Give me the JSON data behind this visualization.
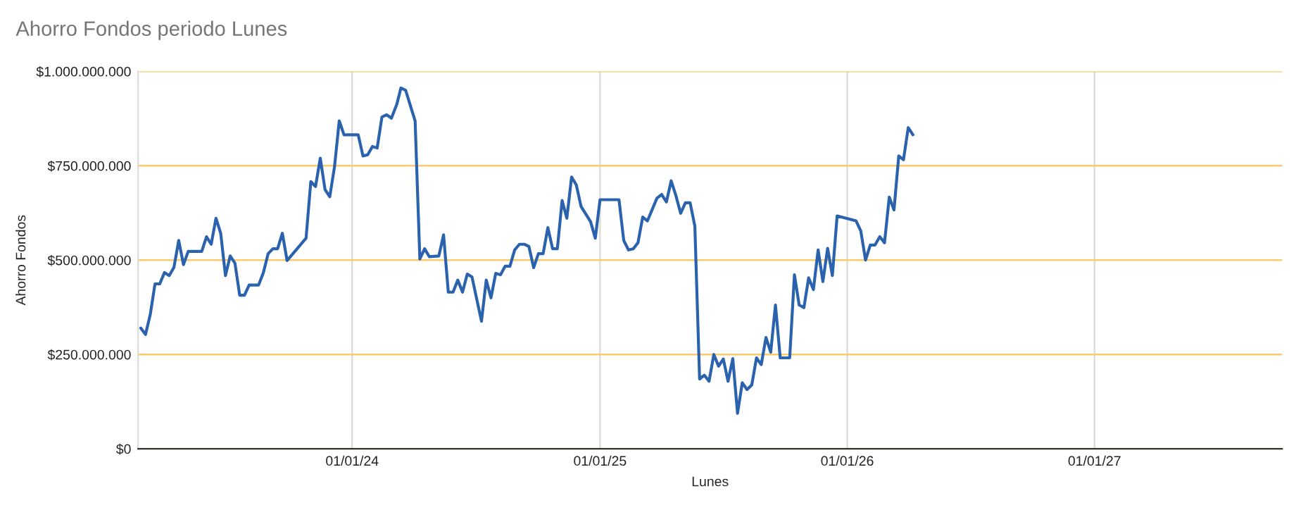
{
  "chart_data": {
    "type": "line",
    "title": "Ahorro Fondos periodo Lunes",
    "xlabel": "Lunes",
    "ylabel": "Ahorro Fondos",
    "x": [
      "2023-02-23",
      "2023-03-02",
      "2023-03-09",
      "2023-03-16",
      "2023-03-23",
      "2023-03-30",
      "2023-04-06",
      "2023-04-13",
      "2023-04-20",
      "2023-04-27",
      "2023-05-04",
      "2023-05-24",
      "2023-05-31",
      "2023-06-07",
      "2023-06-14",
      "2023-06-21",
      "2023-06-28",
      "2023-07-05",
      "2023-07-12",
      "2023-07-19",
      "2023-07-26",
      "2023-08-02",
      "2023-08-16",
      "2023-08-23",
      "2023-08-30",
      "2023-09-06",
      "2023-09-13",
      "2023-09-20",
      "2023-09-27",
      "2023-10-25",
      "2023-11-01",
      "2023-11-08",
      "2023-11-15",
      "2023-11-22",
      "2023-11-29",
      "2023-12-06",
      "2023-12-13",
      "2023-12-20",
      "2024-01-10",
      "2024-01-17",
      "2024-01-24",
      "2024-01-31",
      "2024-02-07",
      "2024-02-14",
      "2024-02-21",
      "2024-02-28",
      "2024-03-07",
      "2024-03-13",
      "2024-03-20",
      "2024-04-03",
      "2024-04-10",
      "2024-04-17",
      "2024-04-24",
      "2024-05-08",
      "2024-05-15",
      "2024-05-22",
      "2024-05-29",
      "2024-06-05",
      "2024-06-12",
      "2024-06-19",
      "2024-06-26",
      "2024-07-10",
      "2024-07-17",
      "2024-07-24",
      "2024-07-31",
      "2024-08-07",
      "2024-08-14",
      "2024-08-21",
      "2024-08-28",
      "2024-09-04",
      "2024-09-11",
      "2024-09-18",
      "2024-09-25",
      "2024-10-02",
      "2024-10-09",
      "2024-10-16",
      "2024-10-23",
      "2024-10-30",
      "2024-11-06",
      "2024-11-13",
      "2024-11-20",
      "2024-11-27",
      "2024-12-04",
      "2024-12-18",
      "2024-12-25",
      "2025-01-01",
      "2025-01-29",
      "2025-02-05",
      "2025-02-12",
      "2025-02-19",
      "2025-02-26",
      "2025-03-05",
      "2025-03-12",
      "2025-03-26",
      "2025-04-02",
      "2025-04-09",
      "2025-04-16",
      "2025-04-23",
      "2025-04-30",
      "2025-05-07",
      "2025-05-14",
      "2025-05-21",
      "2025-05-28",
      "2025-06-04",
      "2025-06-11",
      "2025-06-18",
      "2025-06-25",
      "2025-07-02",
      "2025-07-09",
      "2025-07-16",
      "2025-07-23",
      "2025-07-30",
      "2025-08-06",
      "2025-08-13",
      "2025-08-20",
      "2025-08-27",
      "2025-09-03",
      "2025-09-10",
      "2025-09-17",
      "2025-09-24",
      "2025-10-08",
      "2025-10-15",
      "2025-10-22",
      "2025-10-29",
      "2025-11-05",
      "2025-11-12",
      "2025-11-19",
      "2025-11-26",
      "2025-12-03",
      "2025-12-10",
      "2025-12-17",
      "2026-01-14",
      "2026-01-21",
      "2026-01-28",
      "2026-02-04",
      "2026-02-11",
      "2026-02-18",
      "2026-02-25",
      "2026-03-04",
      "2026-03-11",
      "2026-03-18",
      "2026-03-25",
      "2026-04-01",
      "2026-04-08"
    ],
    "series": [
      {
        "color": "#2a62ad",
        "values": [
          320000000,
          303000000,
          356000000,
          437000000,
          437000000,
          467000000,
          459000000,
          481000000,
          552000000,
          488000000,
          523000000,
          523000000,
          562000000,
          542000000,
          611000000,
          571000000,
          459000000,
          511000000,
          492000000,
          407000000,
          407000000,
          434000000,
          434000000,
          467000000,
          517000000,
          530000000,
          530000000,
          571000000,
          499000000,
          558000000,
          708000000,
          695000000,
          770000000,
          687000000,
          668000000,
          747000000,
          869000000,
          832000000,
          832000000,
          776000000,
          779000000,
          801000000,
          797000000,
          879000000,
          885000000,
          876000000,
          913000000,
          956000000,
          950000000,
          869000000,
          503000000,
          530000000,
          509000000,
          511000000,
          567000000,
          415000000,
          415000000,
          447000000,
          415000000,
          463000000,
          455000000,
          338000000,
          447000000,
          400000000,
          465000000,
          461000000,
          484000000,
          484000000,
          527000000,
          542000000,
          542000000,
          536000000,
          480000000,
          517000000,
          517000000,
          586000000,
          530000000,
          530000000,
          658000000,
          611000000,
          720000000,
          699000000,
          642000000,
          602000000,
          558000000,
          660000000,
          660000000,
          552000000,
          527000000,
          530000000,
          546000000,
          614000000,
          604000000,
          664000000,
          674000000,
          654000000,
          710000000,
          671000000,
          624000000,
          652000000,
          652000000,
          590000000,
          185000000,
          195000000,
          179000000,
          250000000,
          219000000,
          238000000,
          179000000,
          239000000,
          94000000,
          175000000,
          157000000,
          169000000,
          241000000,
          223000000,
          295000000,
          256000000,
          381000000,
          241000000,
          241000000,
          461000000,
          381000000,
          374000000,
          453000000,
          422000000,
          527000000,
          443000000,
          531000000,
          459000000,
          617000000,
          604000000,
          577000000,
          500000000,
          540000000,
          540000000,
          562000000,
          546000000,
          667000000,
          633000000,
          776000000,
          766000000,
          851000000,
          832000000
        ]
      }
    ],
    "xlim": [
      "2023-02-19",
      "2027-10-05"
    ],
    "xticks": [
      {
        "value": "2024-01-01",
        "label": "01/01/24"
      },
      {
        "value": "2025-01-01",
        "label": "01/01/25"
      },
      {
        "value": "2026-01-01",
        "label": "01/01/26"
      },
      {
        "value": "2027-01-01",
        "label": "01/01/27"
      }
    ],
    "ylim": [
      0,
      1000000000
    ],
    "yticks": [
      {
        "value": 0,
        "label": "$0"
      },
      {
        "value": 250000000,
        "label": "$250.000.000"
      },
      {
        "value": 500000000,
        "label": "$500.000.000"
      },
      {
        "value": 750000000,
        "label": "$750.000.000"
      },
      {
        "value": 1000000000,
        "label": "$1.000.000.000"
      }
    ],
    "grid": true,
    "legend": false,
    "marker": "none",
    "line_style": "solid"
  }
}
